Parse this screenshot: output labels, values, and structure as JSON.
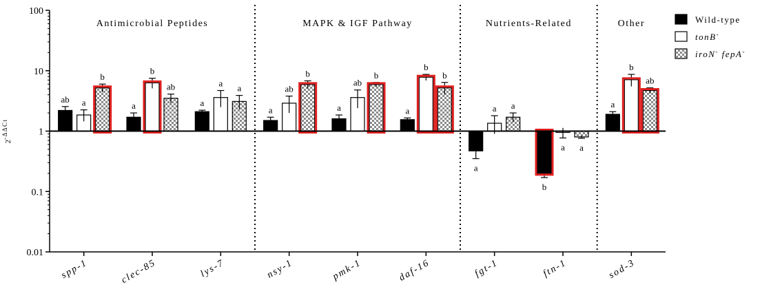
{
  "chart_data": {
    "type": "bar",
    "scale": "log",
    "ylim": [
      0.01,
      100
    ],
    "ylabel": {
      "base": "2",
      "exponent": "-ΔΔCt"
    },
    "yticks": [
      "0.01",
      "0.1",
      "1",
      "10",
      "100"
    ],
    "baseline": 1,
    "categories": [
      "spp-1",
      "clec-85",
      "lys-7",
      "nsy-1",
      "pmk-1",
      "daf-16",
      "fgt-1",
      "ftn-1",
      "sod-3"
    ],
    "groups": [
      {
        "label": "Antimicrobial Peptides",
        "categories": [
          "spp-1",
          "clec-85",
          "lys-7"
        ]
      },
      {
        "label": "MAPK & IGF Pathway",
        "categories": [
          "nsy-1",
          "pmk-1",
          "daf-16"
        ]
      },
      {
        "label": "Nutrients-Related",
        "categories": [
          "fgt-1",
          "ftn-1"
        ]
      },
      {
        "label": "Other",
        "categories": [
          "sod-3"
        ]
      }
    ],
    "series": [
      {
        "name": "Wild-type",
        "legend_sup": "",
        "style": "solid",
        "values": [
          2.2,
          1.7,
          2.1,
          1.5,
          1.6,
          1.55,
          0.47,
          0.2,
          1.9
        ],
        "err": [
          0.35,
          0.3,
          0.12,
          0.2,
          0.25,
          0.1,
          0.12,
          0.03,
          0.2
        ],
        "labels": [
          "ab",
          "a",
          "a",
          "a",
          "a",
          "a",
          "a",
          "b",
          "a"
        ],
        "highlight": [
          false,
          false,
          false,
          false,
          false,
          false,
          false,
          true,
          false
        ]
      },
      {
        "name": "tonB",
        "legend_sup": "-",
        "style": "open",
        "values": [
          1.85,
          6.3,
          3.6,
          2.9,
          3.6,
          7.8,
          1.35,
          0.95,
          7.1
        ],
        "err": [
          0.4,
          1.2,
          1.1,
          0.9,
          1.2,
          0.9,
          0.45,
          0.18,
          1.6
        ],
        "labels": [
          "a",
          "b",
          "a",
          "ab",
          "ab",
          "b",
          "a",
          "a",
          "b"
        ],
        "highlight": [
          false,
          true,
          false,
          false,
          false,
          true,
          false,
          false,
          true
        ]
      },
      {
        "name": "iroN fepA",
        "legend_parts": [
          "iroN",
          "-",
          " fepA",
          "-"
        ],
        "style": "hatched",
        "values": [
          5.2,
          3.5,
          3.1,
          5.9,
          5.9,
          5.2,
          1.7,
          0.8,
          4.7
        ],
        "err": [
          0.8,
          0.6,
          0.8,
          0.9,
          0.5,
          1.2,
          0.3,
          0.04,
          0.5
        ],
        "labels": [
          "b",
          "ab",
          "a",
          "b",
          "b",
          "b",
          "a",
          "a",
          "ab"
        ],
        "highlight": [
          true,
          false,
          false,
          true,
          true,
          true,
          false,
          false,
          true
        ]
      }
    ],
    "highlight_color": "#e02020",
    "legend_position": "top-right"
  }
}
